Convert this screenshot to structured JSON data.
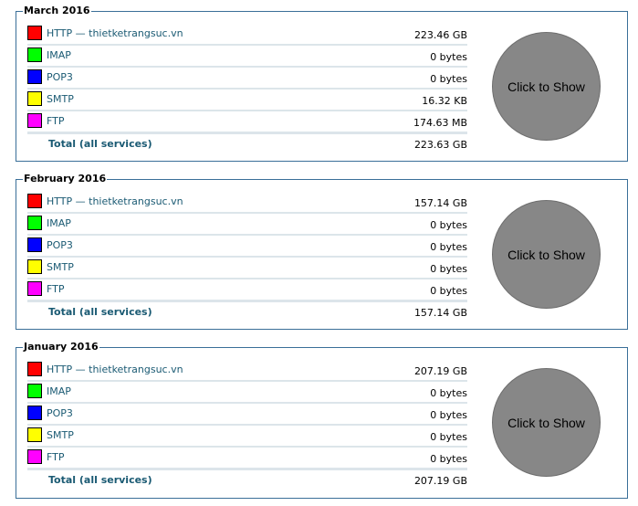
{
  "months": [
    {
      "title": "March 2016",
      "services": [
        {
          "label": "HTTP — thietketrangsuc.vn",
          "value": "223.46 GB",
          "color": "#ff0000"
        },
        {
          "label": "IMAP",
          "value": "0 bytes",
          "color": "#00ff00"
        },
        {
          "label": "POP3",
          "value": "0 bytes",
          "color": "#0000ff"
        },
        {
          "label": "SMTP",
          "value": "16.32 KB",
          "color": "#ffff00"
        },
        {
          "label": "FTP",
          "value": "174.63 MB",
          "color": "#ff00ff"
        }
      ],
      "total_label": "Total (all services)",
      "total_value": "223.63 GB",
      "button_label": "Click to Show"
    },
    {
      "title": "February 2016",
      "services": [
        {
          "label": "HTTP — thietketrangsuc.vn",
          "value": "157.14 GB",
          "color": "#ff0000"
        },
        {
          "label": "IMAP",
          "value": "0 bytes",
          "color": "#00ff00"
        },
        {
          "label": "POP3",
          "value": "0 bytes",
          "color": "#0000ff"
        },
        {
          "label": "SMTP",
          "value": "0 bytes",
          "color": "#ffff00"
        },
        {
          "label": "FTP",
          "value": "0 bytes",
          "color": "#ff00ff"
        }
      ],
      "total_label": "Total (all services)",
      "total_value": "157.14 GB",
      "button_label": "Click to Show"
    },
    {
      "title": "January 2016",
      "services": [
        {
          "label": "HTTP — thietketrangsuc.vn",
          "value": "207.19 GB",
          "color": "#ff0000"
        },
        {
          "label": "IMAP",
          "value": "0 bytes",
          "color": "#00ff00"
        },
        {
          "label": "POP3",
          "value": "0 bytes",
          "color": "#0000ff"
        },
        {
          "label": "SMTP",
          "value": "0 bytes",
          "color": "#ffff00"
        },
        {
          "label": "FTP",
          "value": "0 bytes",
          "color": "#ff00ff"
        }
      ],
      "total_label": "Total (all services)",
      "total_value": "207.19 GB",
      "button_label": "Click to Show"
    }
  ]
}
